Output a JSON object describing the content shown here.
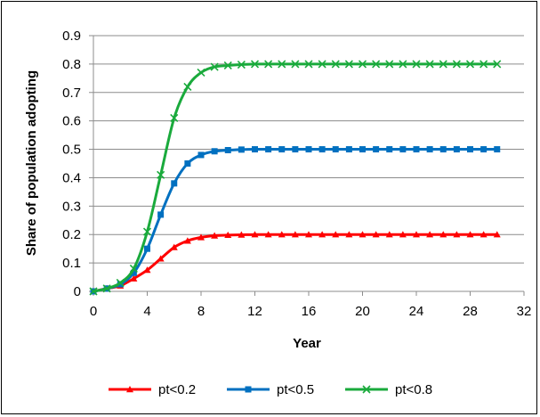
{
  "chart_data": {
    "type": "line",
    "title": "",
    "xlabel": "Year",
    "ylabel": "Share of population adopting",
    "xlim": [
      0,
      32
    ],
    "ylim": [
      0,
      0.9
    ],
    "xticks": [
      0,
      4,
      8,
      12,
      16,
      20,
      24,
      28,
      32
    ],
    "yticks": [
      0,
      0.1,
      0.2,
      0.3,
      0.4,
      0.5,
      0.6,
      0.7,
      0.8,
      0.9
    ],
    "xtick_labels": [
      "0",
      "4",
      "8",
      "12",
      "16",
      "20",
      "24",
      "28",
      "32"
    ],
    "ytick_labels": [
      "0",
      "0.1",
      "0.2",
      "0.3",
      "0.4",
      "0.5",
      "0.6",
      "0.7",
      "0.8",
      "0.9"
    ],
    "grid": "horizontal",
    "legend_position": "bottom",
    "x": [
      0,
      1,
      2,
      3,
      4,
      5,
      6,
      7,
      8,
      9,
      10,
      11,
      12,
      13,
      14,
      15,
      16,
      17,
      18,
      19,
      20,
      21,
      22,
      23,
      24,
      25,
      26,
      27,
      28,
      29,
      30
    ],
    "series": [
      {
        "name": "pt<0.2",
        "color": "#ff0000",
        "marker": "triangle",
        "values": [
          0.0,
          0.01,
          0.02,
          0.045,
          0.075,
          0.115,
          0.155,
          0.178,
          0.19,
          0.196,
          0.198,
          0.199,
          0.2,
          0.2,
          0.2,
          0.2,
          0.2,
          0.2,
          0.2,
          0.2,
          0.2,
          0.2,
          0.2,
          0.2,
          0.2,
          0.2,
          0.2,
          0.2,
          0.2,
          0.2,
          0.2
        ]
      },
      {
        "name": "pt<0.5",
        "color": "#0070c0",
        "marker": "square",
        "values": [
          0.0,
          0.01,
          0.025,
          0.065,
          0.15,
          0.27,
          0.38,
          0.45,
          0.48,
          0.493,
          0.497,
          0.499,
          0.5,
          0.5,
          0.5,
          0.5,
          0.5,
          0.5,
          0.5,
          0.5,
          0.5,
          0.5,
          0.5,
          0.5,
          0.5,
          0.5,
          0.5,
          0.5,
          0.5,
          0.5,
          0.5
        ]
      },
      {
        "name": "pt<0.8",
        "color": "#1aaa3c",
        "marker": "x",
        "values": [
          0.0,
          0.01,
          0.03,
          0.08,
          0.21,
          0.41,
          0.61,
          0.72,
          0.77,
          0.79,
          0.795,
          0.798,
          0.8,
          0.8,
          0.8,
          0.8,
          0.8,
          0.8,
          0.8,
          0.8,
          0.8,
          0.8,
          0.8,
          0.8,
          0.8,
          0.8,
          0.8,
          0.8,
          0.8,
          0.8,
          0.8
        ]
      }
    ]
  }
}
